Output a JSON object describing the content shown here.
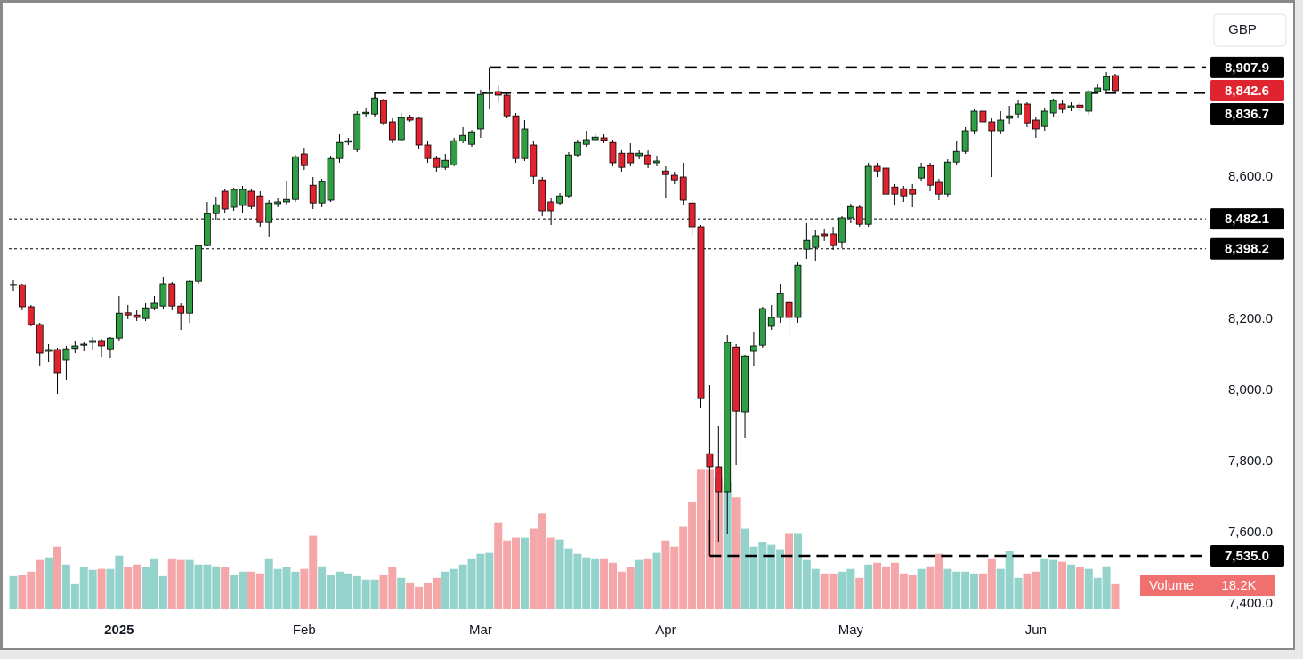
{
  "chart_data": {
    "type": "candlestick",
    "currency": "GBP",
    "categories": [
      null,
      null,
      null,
      null,
      null,
      null,
      null,
      null,
      null,
      null,
      null,
      null,
      "2025",
      null,
      null,
      null,
      null,
      null,
      null,
      null,
      null,
      null,
      null,
      null,
      null,
      null,
      null,
      null,
      null,
      null,
      null,
      null,
      null,
      "Feb",
      null,
      null,
      null,
      null,
      null,
      null,
      null,
      null,
      null,
      null,
      null,
      null,
      null,
      null,
      null,
      null,
      null,
      null,
      null,
      "Mar",
      null,
      null,
      null,
      null,
      null,
      null,
      null,
      null,
      null,
      null,
      null,
      null,
      null,
      null,
      null,
      null,
      null,
      null,
      null,
      null,
      "Apr",
      null,
      null,
      null,
      null,
      null,
      null,
      null,
      null,
      null,
      null,
      null,
      null,
      null,
      null,
      null,
      null,
      null,
      null,
      null,
      null,
      "May",
      null,
      null,
      null,
      null,
      null,
      null,
      null,
      null,
      null,
      null,
      null,
      null,
      null,
      null,
      null,
      null,
      null,
      null,
      null,
      null,
      "Jun",
      null,
      null,
      null,
      null,
      null,
      null,
      null,
      null,
      null
    ],
    "open": [
      8295,
      8297,
      8235,
      8185,
      8110,
      8115,
      8085,
      8118,
      8127,
      8135,
      8140,
      8117,
      8147,
      8218,
      8212,
      8202,
      8232,
      8237,
      8300,
      8237,
      8217,
      8307,
      8407,
      8497,
      8560,
      8515,
      8520,
      8560,
      8547,
      8472,
      8525,
      8530,
      8537,
      8665,
      8577,
      8527,
      8535,
      8652,
      8698,
      8677,
      8778,
      8777,
      8815,
      8755,
      8705,
      8767,
      8765,
      8690,
      8652,
      8627,
      8634,
      8702,
      8692,
      8735,
      8835,
      8840,
      8830,
      8772,
      8652,
      8690,
      8592,
      8530,
      8527,
      8547,
      8662,
      8692,
      8705,
      8710,
      8697,
      8667,
      8667,
      8660,
      8662,
      8640,
      8617,
      8605,
      8600,
      8527,
      8460,
      7822,
      7785,
      7715,
      8122,
      7940,
      8110,
      8127,
      8180,
      8205,
      8247,
      8205,
      8397,
      8402,
      8440,
      8440,
      8417,
      8485,
      8515,
      8467,
      8630,
      8625,
      8572,
      8567,
      8565,
      8597,
      8632,
      8585,
      8552,
      8642,
      8672,
      8730,
      8785,
      8755,
      8730,
      8765,
      8777,
      8805,
      8760,
      8742,
      8780,
      8805,
      8795,
      8802,
      8785,
      8840,
      8845,
      8885
    ],
    "high": [
      8310,
      8300,
      8240,
      8190,
      8130,
      8120,
      8125,
      8140,
      8135,
      8150,
      8145,
      8150,
      8265,
      8240,
      8225,
      8245,
      8265,
      8320,
      8305,
      8245,
      8310,
      8410,
      8530,
      8545,
      8565,
      8570,
      8575,
      8565,
      8560,
      8535,
      8540,
      8590,
      8662,
      8682,
      8600,
      8595,
      8660,
      8720,
      8710,
      8785,
      8795,
      8840,
      8820,
      8765,
      8780,
      8775,
      8770,
      8700,
      8660,
      8665,
      8710,
      8740,
      8732,
      8845,
      8907.9,
      8857,
      8835,
      8780,
      8760,
      8700,
      8600,
      8540,
      8555,
      8670,
      8705,
      8730,
      8725,
      8720,
      8705,
      8675,
      8695,
      8675,
      8675,
      8660,
      8630,
      8615,
      8640,
      8535,
      8465,
      8015,
      7900,
      8155,
      8130,
      8100,
      8165,
      8235,
      8240,
      8300,
      8260,
      8360,
      8470,
      8450,
      8455,
      8460,
      8490,
      8525,
      8520,
      8640,
      8640,
      8640,
      8580,
      8575,
      8580,
      8640,
      8640,
      8595,
      8650,
      8700,
      8740,
      8790,
      8795,
      8765,
      8785,
      8800,
      8815,
      8810,
      8770,
      8795,
      8820,
      8815,
      8810,
      8810,
      8845,
      8860,
      8895,
      8890
    ],
    "low": [
      8280,
      8225,
      8180,
      8070,
      8080,
      7990,
      8030,
      8105,
      8110,
      8115,
      8095,
      8090,
      8140,
      8200,
      8195,
      8195,
      8225,
      8230,
      8225,
      8170,
      8190,
      8300,
      8405,
      8480,
      8500,
      8505,
      8500,
      8510,
      8460,
      8430,
      8515,
      8520,
      8530,
      8620,
      8510,
      8515,
      8530,
      8640,
      8690,
      8670,
      8770,
      8770,
      8745,
      8695,
      8700,
      8755,
      8680,
      8640,
      8615,
      8620,
      8630,
      8695,
      8685,
      8710,
      8790,
      8810,
      8765,
      8640,
      8645,
      8580,
      8490,
      8465,
      8520,
      8540,
      8655,
      8685,
      8700,
      8695,
      8630,
      8615,
      8630,
      8650,
      8625,
      8630,
      8540,
      8580,
      8520,
      8435,
      7950,
      7600,
      7575,
      7595,
      7790,
      7865,
      8070,
      8120,
      8170,
      8190,
      8150,
      8190,
      8370,
      8365,
      8420,
      8395,
      8400,
      8470,
      8460,
      8460,
      8600,
      8545,
      8520,
      8530,
      8515,
      8590,
      8560,
      8535,
      8545,
      8635,
      8665,
      8720,
      8745,
      8600,
      8720,
      8750,
      8765,
      8740,
      8710,
      8730,
      8770,
      8780,
      8785,
      8785,
      8775,
      8835,
      8840,
      8835
    ],
    "close": [
      8298,
      8235,
      8185,
      8105,
      8115,
      8050,
      8117,
      8125,
      8130,
      8140,
      8125,
      8147,
      8217,
      8212,
      8205,
      8232,
      8245,
      8300,
      8237,
      8217,
      8307,
      8407,
      8497,
      8522,
      8510,
      8565,
      8565,
      8517,
      8472,
      8527,
      8530,
      8537,
      8657,
      8632,
      8527,
      8587,
      8652,
      8697,
      8702,
      8777,
      8782,
      8822,
      8752,
      8705,
      8767,
      8760,
      8690,
      8652,
      8627,
      8647,
      8702,
      8717,
      8727,
      8832,
      8838,
      8830,
      8772,
      8652,
      8735,
      8602,
      8505,
      8505,
      8547,
      8662,
      8697,
      8705,
      8712,
      8703,
      8640,
      8627,
      8640,
      8667,
      8637,
      8645,
      8607,
      8592,
      8535,
      8460,
      7977,
      7785,
      7715,
      8135,
      7942,
      8097,
      8125,
      8230,
      8205,
      8272,
      8205,
      8352,
      8422,
      8435,
      8435,
      8407,
      8485,
      8517,
      8467,
      8630,
      8617,
      8552,
      8552,
      8547,
      8552,
      8627,
      8577,
      8552,
      8642,
      8672,
      8730,
      8785,
      8755,
      8730,
      8760,
      8772,
      8805,
      8752,
      8735,
      8785,
      8815,
      8790,
      8800,
      8795,
      8840,
      8850,
      8882,
      8842.6
    ],
    "volume": [
      24000,
      24700,
      27300,
      35800,
      37700,
      45500,
      32500,
      18200,
      30600,
      28600,
      29300,
      29300,
      39000,
      30600,
      32500,
      30600,
      37000,
      24000,
      37000,
      35800,
      35800,
      32500,
      32500,
      31200,
      30600,
      24700,
      27300,
      27300,
      26000,
      37000,
      29300,
      30600,
      27300,
      29300,
      53300,
      31200,
      24700,
      27300,
      26000,
      24000,
      21500,
      21500,
      24700,
      30600,
      22800,
      19500,
      16300,
      19500,
      22800,
      27300,
      29300,
      32500,
      37000,
      40300,
      41000,
      63000,
      50000,
      52000,
      52000,
      58500,
      69600,
      52000,
      50700,
      44200,
      40300,
      37700,
      37000,
      37000,
      33800,
      27300,
      30600,
      35800,
      37000,
      41000,
      50000,
      45500,
      59800,
      78000,
      102000,
      102000,
      96200,
      92300,
      81300,
      58500,
      45500,
      48800,
      46800,
      43600,
      55300,
      55300,
      35800,
      29300,
      26000,
      26000,
      27300,
      29300,
      22800,
      32500,
      33800,
      31200,
      33800,
      26000,
      24700,
      29300,
      31200,
      40300,
      29300,
      27300,
      27300,
      26000,
      26000,
      37000,
      29300,
      42300,
      22800,
      26000,
      27300,
      37000,
      35800,
      34500,
      32500,
      30600,
      29300,
      22800,
      31200,
      18200
    ],
    "volume_label": "Volume",
    "volume_value_label": "18.2K",
    "last_price_label": "8,842.6",
    "up_color": "#2f9e44",
    "down_color": "#e0242f",
    "volume_up_color": "#93d3cc",
    "volume_down_color": "#f5a6a8",
    "ylim": [
      7385,
      9085
    ],
    "yticks": [
      {
        "value": 7400,
        "label": "7,400.0"
      },
      {
        "value": 7600,
        "label": "7,600.0"
      },
      {
        "value": 7800,
        "label": "7,800.0"
      },
      {
        "value": 8000,
        "label": "8,000.0"
      },
      {
        "value": 8200,
        "label": "8,200.0"
      },
      {
        "value": 8600,
        "label": "8,600.0"
      }
    ],
    "volume_lim": [
      0,
      130000
    ],
    "levels": [
      {
        "value": 8907.9,
        "label": "8,907.9",
        "style": "dashed"
      },
      {
        "value": 8836.7,
        "label": "8,836.7",
        "style": "dashed"
      },
      {
        "value": 8482.1,
        "label": "8,482.1",
        "style": "dotted"
      },
      {
        "value": 8398.2,
        "label": "8,398.2",
        "style": "dotted"
      },
      {
        "value": 7535.0,
        "label": "7,535.0",
        "style": "dashed"
      }
    ]
  }
}
